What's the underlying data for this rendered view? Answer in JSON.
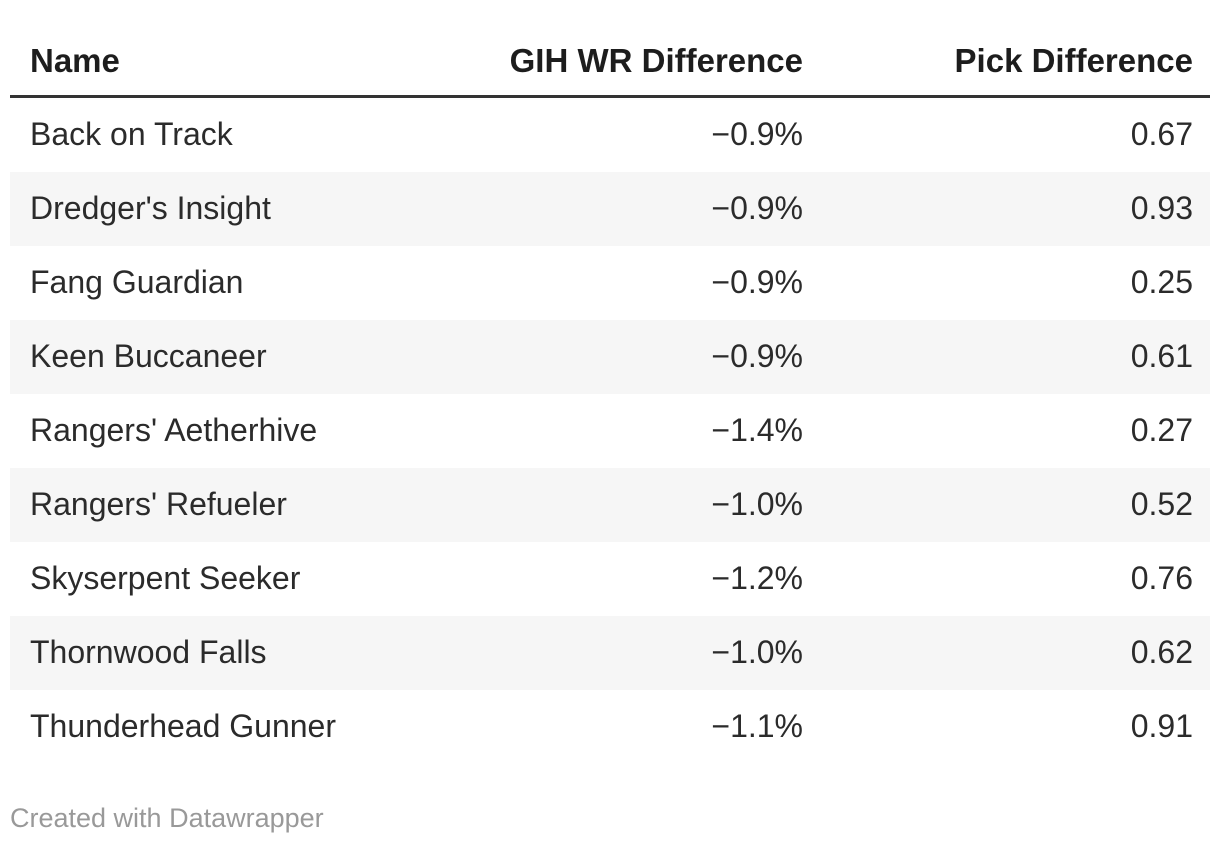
{
  "table": {
    "header": [
      "Name",
      "GIH WR Difference",
      "Pick Difference"
    ],
    "rows": [
      [
        "Back on Track",
        "−0.9%",
        "0.67"
      ],
      [
        "Dredger's Insight",
        "−0.9%",
        "0.93"
      ],
      [
        "Fang Guardian",
        "−0.9%",
        "0.25"
      ],
      [
        "Keen Buccaneer",
        "−0.9%",
        "0.61"
      ],
      [
        "Rangers' Aetherhive",
        "−1.4%",
        "0.27"
      ],
      [
        "Rangers' Refueler",
        "−1.0%",
        "0.52"
      ],
      [
        "Skyserpent Seeker",
        "−1.2%",
        "0.76"
      ],
      [
        "Thornwood Falls",
        "−1.0%",
        "0.62"
      ],
      [
        "Thunderhead Gunner",
        "−1.1%",
        "0.91"
      ]
    ]
  },
  "footer": {
    "credit": "Created with Datawrapper"
  },
  "colors": {
    "background": "#ffffff",
    "header_text": "#1d1d1d",
    "body_text": "#2b2b2b",
    "header_border": "#333333",
    "row_stripe": "#f6f6f6",
    "credit_text": "#999999"
  },
  "chart_data": {
    "type": "table",
    "title": "",
    "columns": [
      "Name",
      "GIH WR Difference",
      "Pick Difference"
    ],
    "rows": [
      {
        "name": "Back on Track",
        "gih_wr_difference_pct": -0.9,
        "pick_difference": 0.67
      },
      {
        "name": "Dredger's Insight",
        "gih_wr_difference_pct": -0.9,
        "pick_difference": 0.93
      },
      {
        "name": "Fang Guardian",
        "gih_wr_difference_pct": -0.9,
        "pick_difference": 0.25
      },
      {
        "name": "Keen Buccaneer",
        "gih_wr_difference_pct": -0.9,
        "pick_difference": 0.61
      },
      {
        "name": "Rangers' Aetherhive",
        "gih_wr_difference_pct": -1.4,
        "pick_difference": 0.27
      },
      {
        "name": "Rangers' Refueler",
        "gih_wr_difference_pct": -1.0,
        "pick_difference": 0.52
      },
      {
        "name": "Skyserpent Seeker",
        "gih_wr_difference_pct": -1.2,
        "pick_difference": 0.76
      },
      {
        "name": "Thornwood Falls",
        "gih_wr_difference_pct": -1.0,
        "pick_difference": 0.62
      },
      {
        "name": "Thunderhead Gunner",
        "gih_wr_difference_pct": -1.1,
        "pick_difference": 0.91
      }
    ],
    "striped_rows": true,
    "header_rule": true,
    "credit": "Created with Datawrapper"
  }
}
